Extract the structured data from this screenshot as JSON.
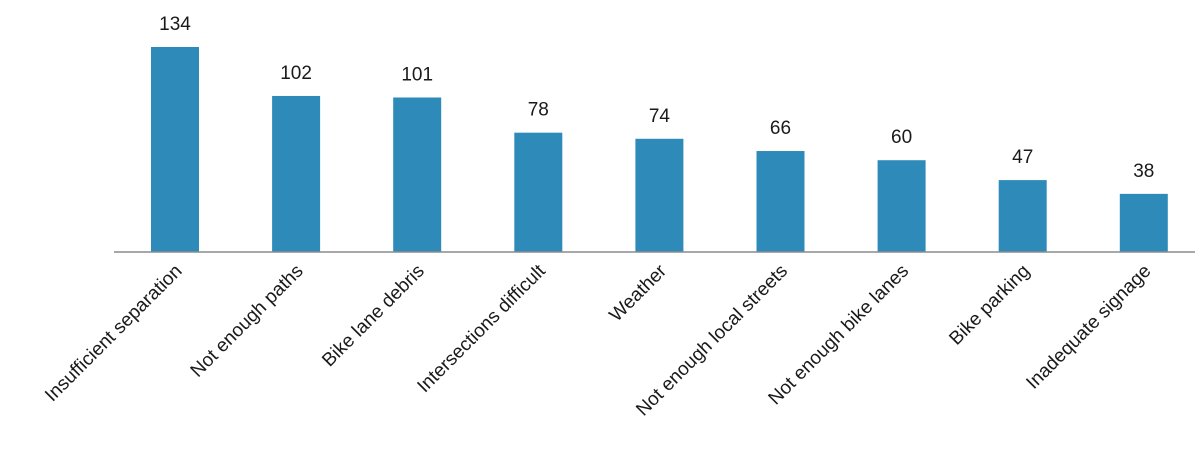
{
  "chart_data": {
    "type": "bar",
    "title": "",
    "xlabel": "",
    "ylabel": "",
    "categories": [
      "Insufficient separation",
      "Not enough paths",
      "Bike lane debris",
      "Intersections difficult",
      "Weather",
      "Not enough local streets",
      "Not enough bike lanes",
      "Bike parking",
      "Inadequate signage"
    ],
    "values": [
      134,
      102,
      101,
      78,
      74,
      66,
      60,
      47,
      38
    ],
    "ylim": [
      0,
      134
    ],
    "grid": false,
    "legend": "none",
    "bar_color": "#2e8bb9",
    "data_labels": true
  }
}
